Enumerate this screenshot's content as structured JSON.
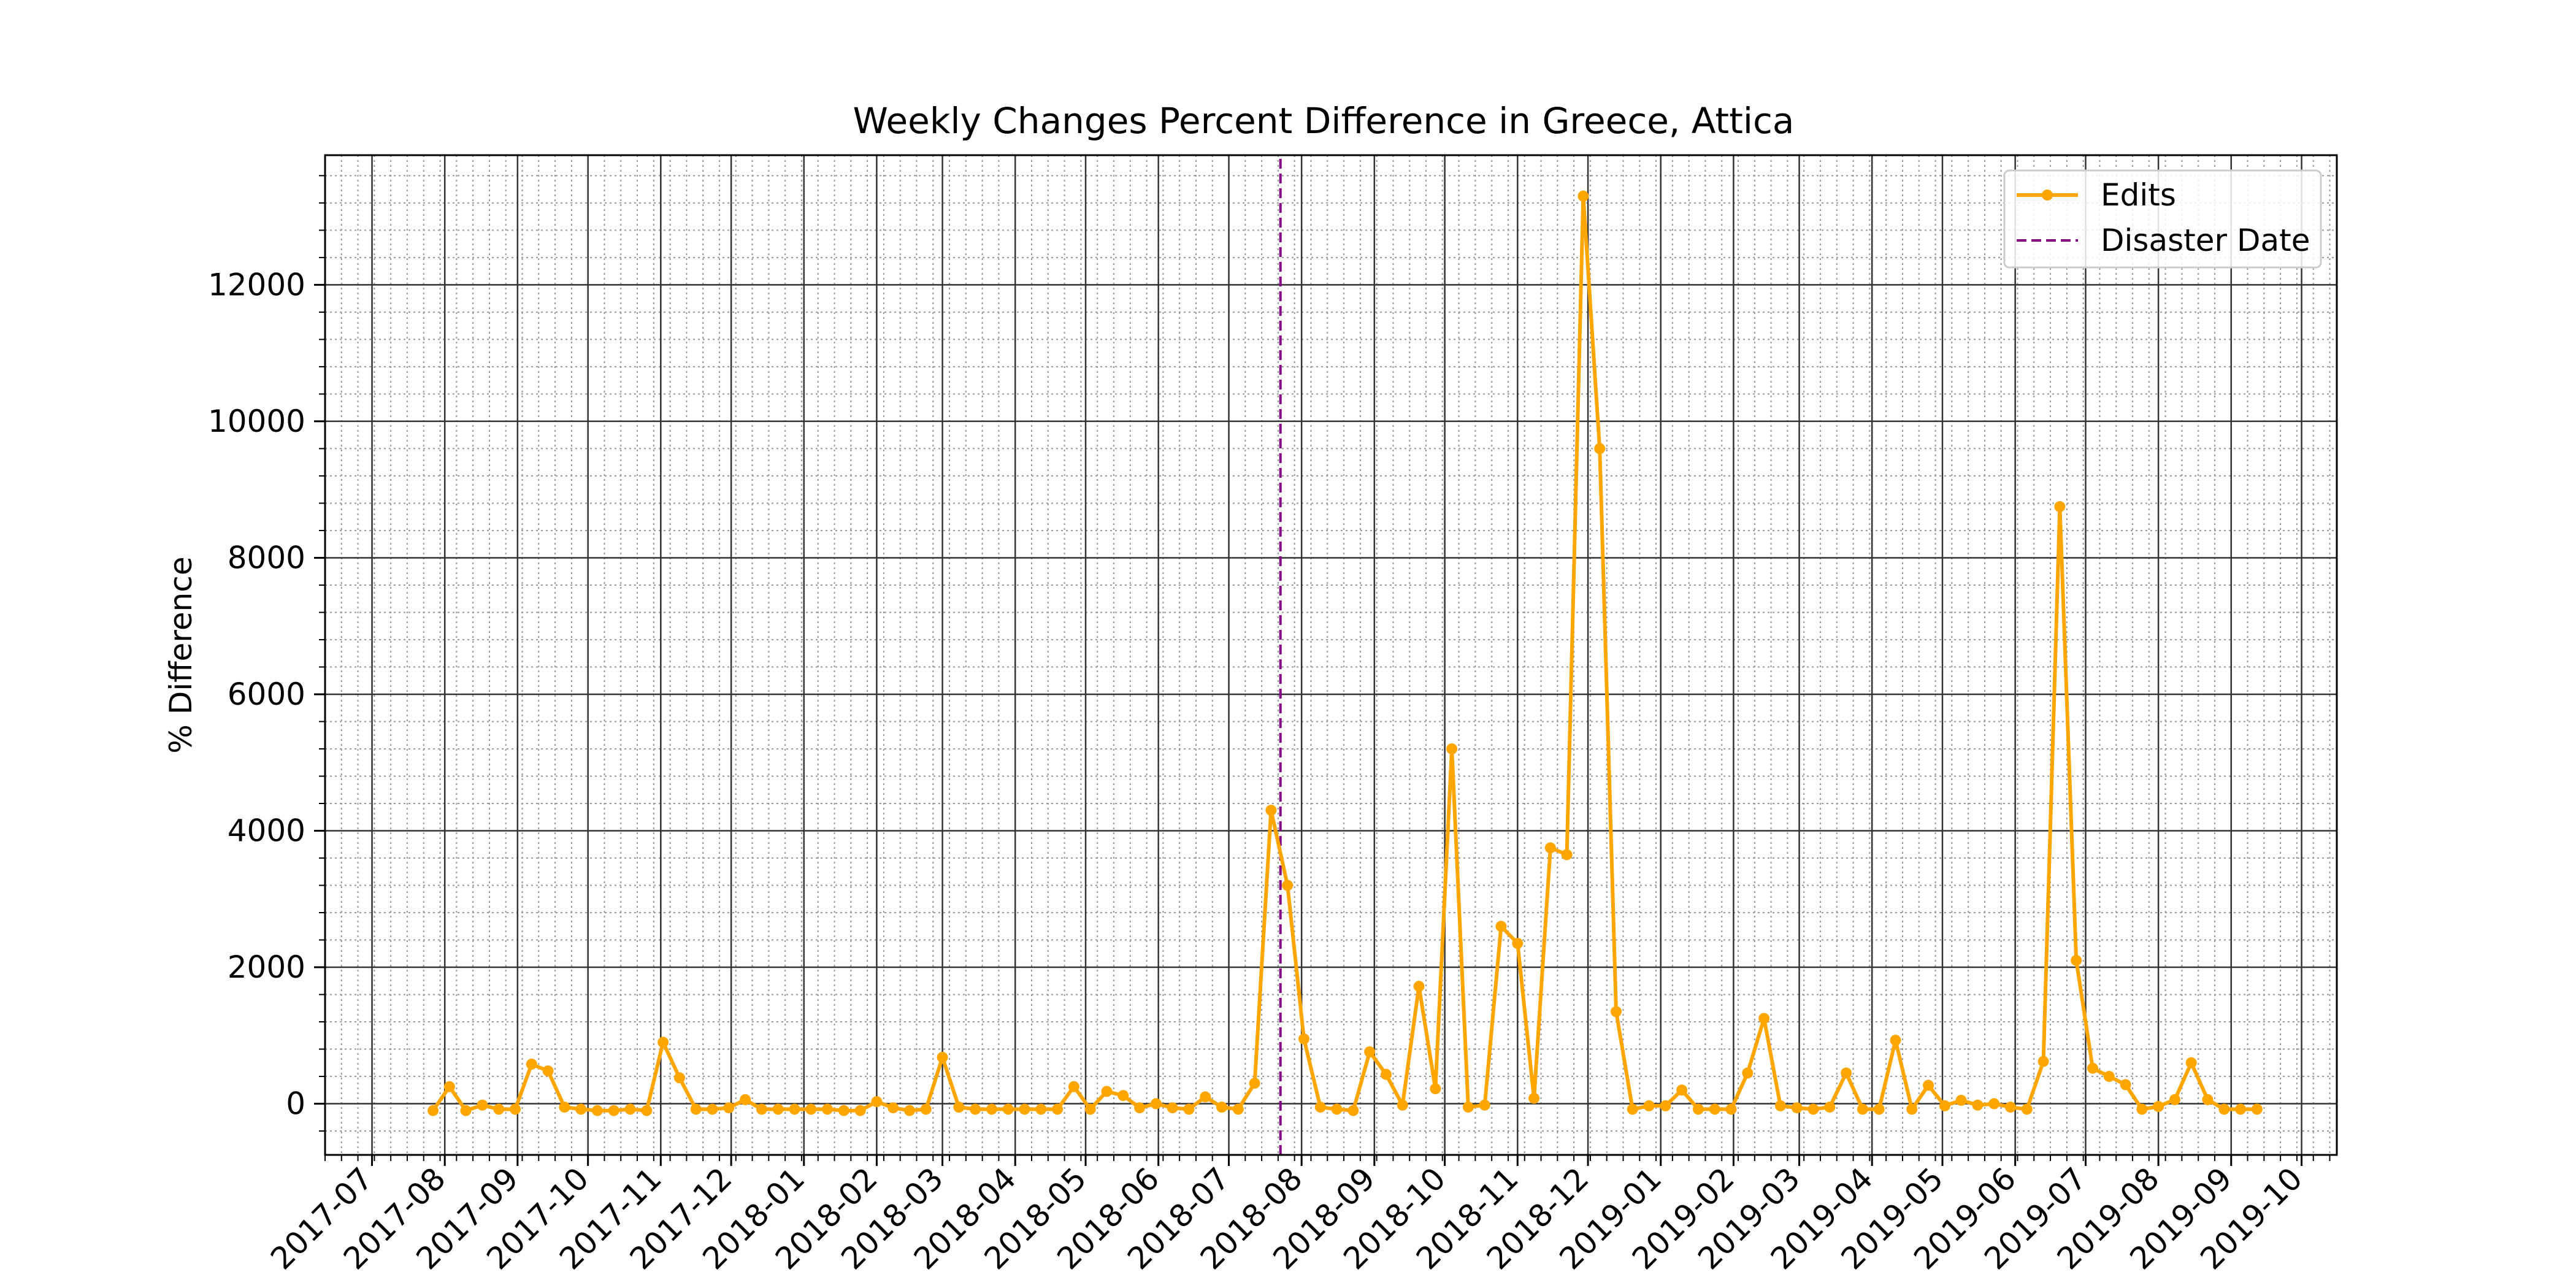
{
  "chart_data": {
    "type": "line",
    "title": "Weekly Changes Percent Difference in Greece, Attica",
    "xlabel": "",
    "ylabel": "% Difference",
    "x_tick_labels": [
      "2017-07",
      "2017-08",
      "2017-09",
      "2017-10",
      "2017-11",
      "2017-12",
      "2018-01",
      "2018-02",
      "2018-03",
      "2018-04",
      "2018-05",
      "2018-06",
      "2018-07",
      "2018-08",
      "2018-09",
      "2018-10",
      "2018-11",
      "2018-12",
      "2019-01",
      "2019-02",
      "2019-03",
      "2019-04",
      "2019-05",
      "2019-06",
      "2019-07",
      "2019-08",
      "2019-09",
      "2019-10"
    ],
    "y_ticks": [
      0,
      2000,
      4000,
      6000,
      8000,
      10000,
      12000
    ],
    "xlim": [
      "2017-06-11",
      "2019-10-16"
    ],
    "ylim": [
      -750,
      13900
    ],
    "grid": true,
    "legend_position": "top-right",
    "colors": {
      "edits": "#ffa500",
      "disaster": "#800080",
      "grid_major": "#333333",
      "grid_minor": "#999999"
    },
    "series": [
      {
        "name": "Edits",
        "x": [
          "2017-07-27",
          "2017-08-03",
          "2017-08-10",
          "2017-08-17",
          "2017-08-24",
          "2017-08-31",
          "2017-09-07",
          "2017-09-14",
          "2017-09-21",
          "2017-09-28",
          "2017-10-05",
          "2017-10-12",
          "2017-10-19",
          "2017-10-26",
          "2017-11-02",
          "2017-11-09",
          "2017-11-16",
          "2017-11-23",
          "2017-11-30",
          "2017-12-07",
          "2017-12-14",
          "2017-12-21",
          "2017-12-28",
          "2018-01-04",
          "2018-01-11",
          "2018-01-18",
          "2018-01-25",
          "2018-02-01",
          "2018-02-08",
          "2018-02-15",
          "2018-02-22",
          "2018-03-01",
          "2018-03-08",
          "2018-03-15",
          "2018-03-22",
          "2018-03-29",
          "2018-04-05",
          "2018-04-12",
          "2018-04-19",
          "2018-04-26",
          "2018-05-03",
          "2018-05-10",
          "2018-05-17",
          "2018-05-24",
          "2018-05-31",
          "2018-06-07",
          "2018-06-14",
          "2018-06-21",
          "2018-06-28",
          "2018-07-05",
          "2018-07-12",
          "2018-07-19",
          "2018-07-26",
          "2018-08-02",
          "2018-08-09",
          "2018-08-16",
          "2018-08-23",
          "2018-08-30",
          "2018-09-06",
          "2018-09-13",
          "2018-09-20",
          "2018-09-27",
          "2018-10-04",
          "2018-10-11",
          "2018-10-18",
          "2018-10-25",
          "2018-11-01",
          "2018-11-08",
          "2018-11-15",
          "2018-11-22",
          "2018-11-29",
          "2018-12-06",
          "2018-12-13",
          "2018-12-20",
          "2018-12-27",
          "2019-01-03",
          "2019-01-10",
          "2019-01-17",
          "2019-01-24",
          "2019-01-31",
          "2019-02-07",
          "2019-02-14",
          "2019-02-21",
          "2019-02-28",
          "2019-03-07",
          "2019-03-14",
          "2019-03-21",
          "2019-03-28",
          "2019-04-04",
          "2019-04-11",
          "2019-04-18",
          "2019-04-25",
          "2019-05-02",
          "2019-05-09",
          "2019-05-16",
          "2019-05-23",
          "2019-05-30",
          "2019-06-06",
          "2019-06-13",
          "2019-06-20",
          "2019-06-27",
          "2019-07-04",
          "2019-07-11",
          "2019-07-18",
          "2019-07-25",
          "2019-08-01",
          "2019-08-08",
          "2019-08-15",
          "2019-08-22",
          "2019-08-29",
          "2019-09-05",
          "2019-09-12"
        ],
        "values": [
          -100,
          250,
          -100,
          -20,
          -80,
          -80,
          580,
          480,
          -50,
          -80,
          -100,
          -100,
          -80,
          -100,
          900,
          380,
          -80,
          -80,
          -60,
          60,
          -80,
          -80,
          -80,
          -80,
          -80,
          -100,
          -100,
          30,
          -60,
          -100,
          -80,
          680,
          -50,
          -80,
          -80,
          -80,
          -80,
          -80,
          -80,
          250,
          -80,
          180,
          120,
          -60,
          0,
          -60,
          -80,
          100,
          -50,
          -80,
          300,
          4300,
          3200,
          950,
          -50,
          -80,
          -100,
          760,
          430,
          -20,
          1720,
          220,
          5200,
          -50,
          -20,
          2600,
          2350,
          80,
          3750,
          3650,
          13300,
          9600,
          1350,
          -80,
          -30,
          -30,
          200,
          -80,
          -80,
          -80,
          450,
          1250,
          -30,
          -60,
          -80,
          -50,
          450,
          -80,
          -80,
          930,
          -80,
          270,
          -30,
          50,
          -20,
          0,
          -50,
          -80,
          620,
          8750,
          2100,
          520,
          400,
          280,
          -80,
          -40,
          60,
          600,
          60,
          -80,
          -80,
          -80
        ]
      },
      {
        "name": "Disaster Date",
        "x": [
          "2018-07-23",
          "2018-07-23"
        ],
        "values": [
          -750,
          13900
        ]
      }
    ]
  }
}
